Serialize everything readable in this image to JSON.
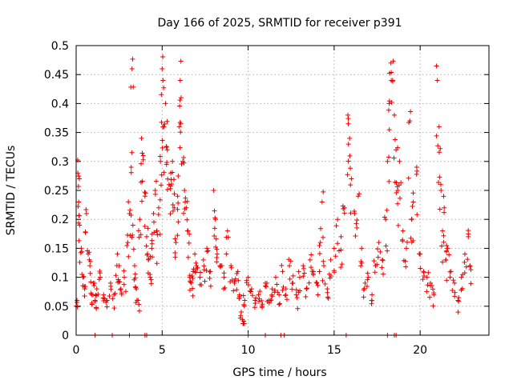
{
  "chart_data": {
    "type": "scatter",
    "title": "Day 166 of 2025, SRMTID for receiver p391",
    "xlabel": "GPS time / hours",
    "ylabel": "SRMTID / TECUs",
    "xlim": [
      0,
      24
    ],
    "ylim": [
      0,
      0.5
    ],
    "grid": true,
    "marker": "+",
    "series_color": "#ee0000",
    "xticks": [
      0,
      5,
      10,
      15,
      20
    ],
    "xtick_labels": [
      "0",
      "5",
      "10",
      "15",
      "20"
    ],
    "yticks": [
      0,
      0.05,
      0.1,
      0.15,
      0.2,
      0.25,
      0.3,
      0.35,
      0.4,
      0.45,
      0.5
    ],
    "ytick_labels": [
      "0",
      "0.05",
      "0.1",
      "0.15",
      "0.2",
      "0.25",
      "0.3",
      "0.35",
      "0.4",
      "0.45",
      "0.5"
    ],
    "series": [
      {
        "name": "SRMTID",
        "points": [
          [
            0.05,
            0.06
          ],
          [
            0.1,
            0.28
          ],
          [
            0.15,
            0.23
          ],
          [
            0.2,
            0.19
          ],
          [
            0.3,
            0.15
          ],
          [
            0.4,
            0.1
          ],
          [
            0.5,
            0.08
          ],
          [
            0.6,
            0.21
          ],
          [
            0.7,
            0.14
          ],
          [
            0.8,
            0.12
          ],
          [
            0.9,
            0.07
          ],
          [
            1.0,
            0.09
          ],
          [
            1.1,
            0.06
          ],
          [
            1.2,
            0.08
          ],
          [
            1.4,
            0.1
          ],
          [
            1.6,
            0.07
          ],
          [
            1.8,
            0.06
          ],
          [
            2.0,
            0.09
          ],
          [
            2.2,
            0.07
          ],
          [
            2.4,
            0.14
          ],
          [
            2.5,
            0.12
          ],
          [
            2.6,
            0.08
          ],
          [
            2.8,
            0.1
          ],
          [
            3.0,
            0.16
          ],
          [
            3.1,
            0.21
          ],
          [
            3.2,
            0.29
          ],
          [
            3.25,
            0.46
          ],
          [
            3.3,
            0.19
          ],
          [
            3.4,
            0.12
          ],
          [
            3.5,
            0.08
          ],
          [
            3.6,
            0.06
          ],
          [
            3.7,
            0.2
          ],
          [
            3.8,
            0.34
          ],
          [
            3.9,
            0.31
          ],
          [
            4.0,
            0.24
          ],
          [
            4.1,
            0.17
          ],
          [
            4.2,
            0.13
          ],
          [
            4.3,
            0.1
          ],
          [
            4.4,
            0.15
          ],
          [
            4.5,
            0.21
          ],
          [
            4.6,
            0.25
          ],
          [
            4.7,
            0.18
          ],
          [
            4.8,
            0.22
          ],
          [
            4.9,
            0.3
          ],
          [
            5.0,
            0.46
          ],
          [
            5.05,
            0.44
          ],
          [
            5.1,
            0.36
          ],
          [
            5.2,
            0.4
          ],
          [
            5.3,
            0.32
          ],
          [
            5.4,
            0.26
          ],
          [
            5.5,
            0.28
          ],
          [
            5.6,
            0.3
          ],
          [
            5.7,
            0.22
          ],
          [
            5.8,
            0.16
          ],
          [
            5.9,
            0.24
          ],
          [
            6.0,
            0.36
          ],
          [
            6.05,
            0.44
          ],
          [
            6.1,
            0.41
          ],
          [
            6.2,
            0.3
          ],
          [
            6.3,
            0.25
          ],
          [
            6.4,
            0.22
          ],
          [
            6.5,
            0.18
          ],
          [
            6.6,
            0.1
          ],
          [
            6.7,
            0.09
          ],
          [
            6.8,
            0.11
          ],
          [
            6.9,
            0.14
          ],
          [
            7.0,
            0.12
          ],
          [
            7.2,
            0.1
          ],
          [
            7.4,
            0.13
          ],
          [
            7.6,
            0.15
          ],
          [
            7.8,
            0.11
          ],
          [
            8.0,
            0.25
          ],
          [
            8.1,
            0.2
          ],
          [
            8.2,
            0.14
          ],
          [
            8.4,
            0.12
          ],
          [
            8.6,
            0.1
          ],
          [
            8.8,
            0.18
          ],
          [
            9.0,
            0.12
          ],
          [
            9.2,
            0.09
          ],
          [
            9.4,
            0.11
          ],
          [
            9.5,
            0.07
          ],
          [
            9.6,
            0.04
          ],
          [
            9.7,
            0.02
          ],
          [
            9.8,
            0.06
          ],
          [
            10.0,
            0.1
          ],
          [
            10.2,
            0.08
          ],
          [
            10.4,
            0.06
          ],
          [
            10.6,
            0.07
          ],
          [
            10.8,
            0.05
          ],
          [
            11.0,
            0.09
          ],
          [
            11.2,
            0.06
          ],
          [
            11.4,
            0.08
          ],
          [
            11.6,
            0.1
          ],
          [
            11.8,
            0.07
          ],
          [
            12.0,
            0.11
          ],
          [
            12.2,
            0.08
          ],
          [
            12.4,
            0.12
          ],
          [
            12.6,
            0.09
          ],
          [
            12.8,
            0.07
          ],
          [
            13.0,
            0.1
          ],
          [
            13.2,
            0.12
          ],
          [
            13.4,
            0.08
          ],
          [
            13.6,
            0.13
          ],
          [
            13.8,
            0.11
          ],
          [
            14.0,
            0.09
          ],
          [
            14.2,
            0.16
          ],
          [
            14.3,
            0.23
          ],
          [
            14.4,
            0.12
          ],
          [
            14.6,
            0.08
          ],
          [
            14.8,
            0.13
          ],
          [
            15.0,
            0.15
          ],
          [
            15.2,
            0.2
          ],
          [
            15.4,
            0.17
          ],
          [
            15.6,
            0.22
          ],
          [
            15.8,
            0.38
          ],
          [
            15.9,
            0.34
          ],
          [
            16.0,
            0.27
          ],
          [
            16.2,
            0.21
          ],
          [
            16.4,
            0.24
          ],
          [
            16.6,
            0.15
          ],
          [
            16.8,
            0.09
          ],
          [
            17.0,
            0.1
          ],
          [
            17.2,
            0.07
          ],
          [
            17.4,
            0.12
          ],
          [
            17.6,
            0.16
          ],
          [
            17.8,
            0.13
          ],
          [
            18.0,
            0.2
          ],
          [
            18.1,
            0.3
          ],
          [
            18.2,
            0.4
          ],
          [
            18.3,
            0.47
          ],
          [
            18.4,
            0.44
          ],
          [
            18.5,
            0.38
          ],
          [
            18.6,
            0.32
          ],
          [
            18.7,
            0.25
          ],
          [
            18.8,
            0.3
          ],
          [
            19.0,
            0.18
          ],
          [
            19.2,
            0.15
          ],
          [
            19.4,
            0.37
          ],
          [
            19.5,
            0.2
          ],
          [
            19.6,
            0.23
          ],
          [
            19.8,
            0.29
          ],
          [
            20.0,
            0.14
          ],
          [
            20.2,
            0.11
          ],
          [
            20.4,
            0.1
          ],
          [
            20.6,
            0.09
          ],
          [
            20.8,
            0.07
          ],
          [
            21.0,
            0.44
          ],
          [
            21.1,
            0.36
          ],
          [
            21.2,
            0.26
          ],
          [
            21.3,
            0.18
          ],
          [
            21.4,
            0.22
          ],
          [
            21.5,
            0.13
          ],
          [
            21.6,
            0.15
          ],
          [
            21.8,
            0.11
          ],
          [
            22.0,
            0.09
          ],
          [
            22.2,
            0.06
          ],
          [
            22.4,
            0.1
          ],
          [
            22.6,
            0.14
          ],
          [
            22.8,
            0.17
          ],
          [
            22.9,
            0.12
          ]
        ]
      }
    ],
    "zero_markers": [
      1.1,
      2.1,
      3.1,
      4.0,
      4.1,
      10.0,
      11.0,
      11.9,
      12.1,
      15.7,
      18.1,
      18.5,
      18.6
    ]
  }
}
